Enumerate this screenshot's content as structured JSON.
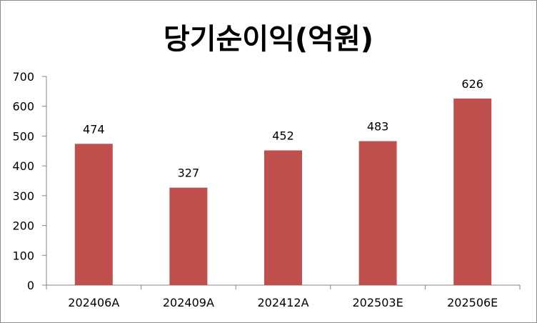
{
  "chart_data": {
    "type": "bar",
    "title": "당기순이익(억원)",
    "categories": [
      "202406A",
      "202409A",
      "202412A",
      "202503E",
      "202506E"
    ],
    "values": [
      474,
      327,
      452,
      483,
      626
    ],
    "data_labels": [
      "474",
      "327",
      "452",
      "483",
      "626"
    ],
    "ylim": [
      0,
      700
    ],
    "yticks": [
      0,
      100,
      200,
      300,
      400,
      500,
      600,
      700
    ],
    "ytick_labels": [
      "0",
      "100",
      "200",
      "300",
      "400",
      "500",
      "600",
      "700"
    ],
    "grid": false,
    "legend": "none",
    "bar_color": "#c0504d"
  }
}
